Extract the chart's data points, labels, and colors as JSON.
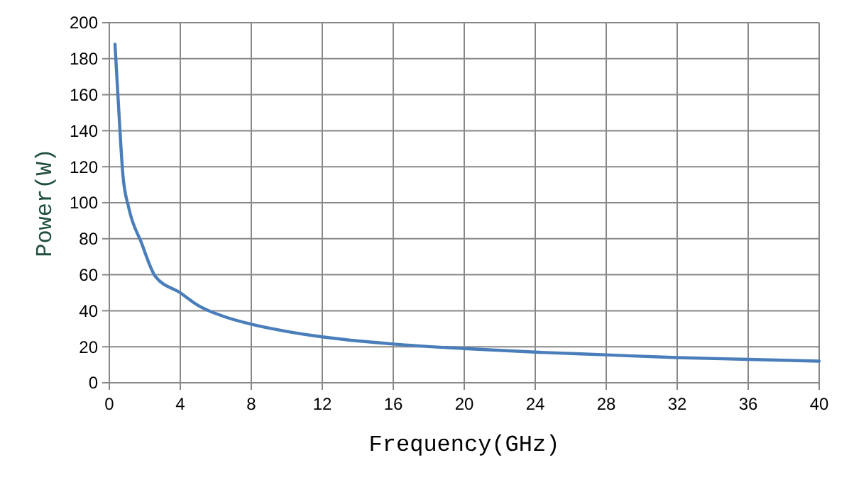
{
  "chart_data": {
    "type": "line",
    "xlabel": "Frequency(GHz)",
    "ylabel": "Power(W)",
    "series": [
      {
        "color": "#4a7ebb",
        "x": [
          0.32,
          0.5,
          0.77,
          1.1,
          1.8,
          2.6,
          4,
          5,
          6.4,
          8,
          10,
          12,
          16,
          20,
          24,
          28,
          32,
          36,
          40
        ],
        "values": [
          188,
          157,
          115,
          97,
          78,
          59,
          50,
          43,
          37,
          32.5,
          28.5,
          25.5,
          21.5,
          19,
          17,
          15.5,
          14,
          13,
          12
        ]
      }
    ],
    "xlim": [
      0,
      40
    ],
    "xticks": [
      0,
      4,
      8,
      12,
      16,
      20,
      24,
      28,
      32,
      36,
      40
    ],
    "ylim": [
      0,
      200
    ],
    "yticks": [
      0,
      20,
      40,
      60,
      80,
      100,
      120,
      140,
      160,
      180,
      200
    ],
    "grid": true,
    "marker": "none",
    "line_style": "solid"
  }
}
